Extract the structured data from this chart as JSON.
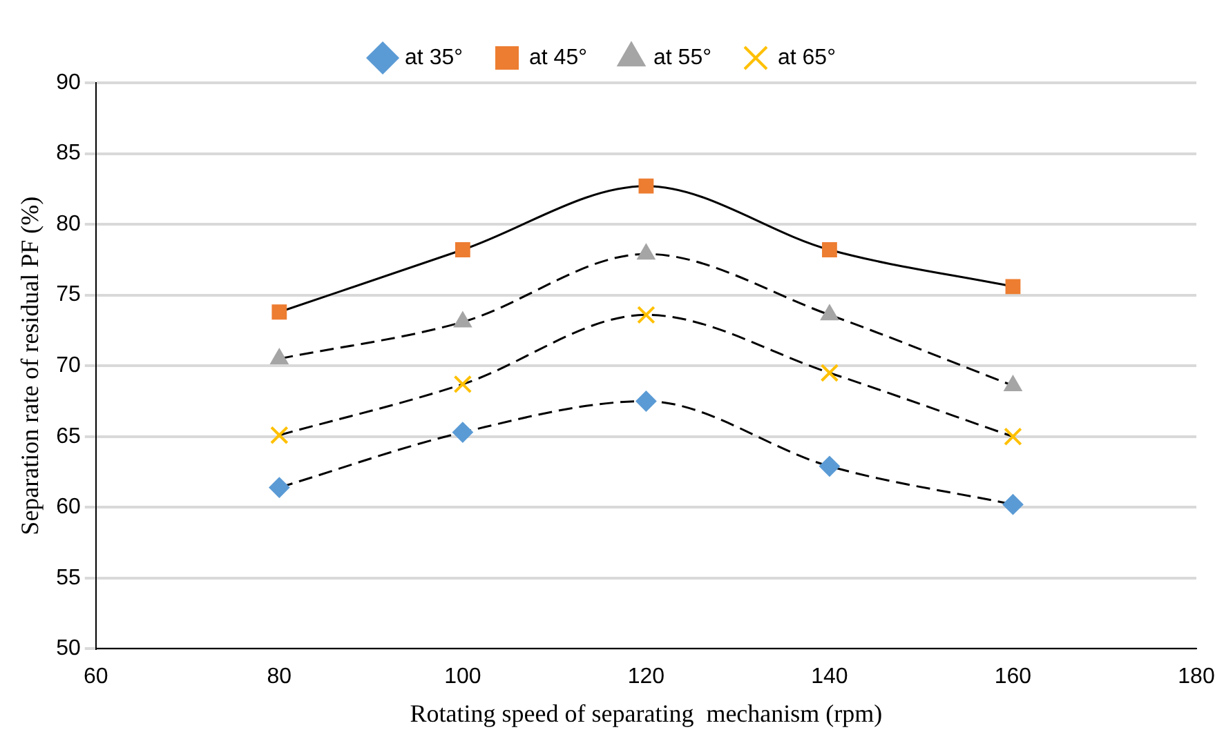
{
  "chart_data": {
    "type": "line",
    "xlabel": "Rotating speed of separating  mechanism (rpm)",
    "ylabel": "Separation rate of residual PF (%)",
    "x": [
      80,
      100,
      120,
      140,
      160
    ],
    "series": [
      {
        "name": "at 35°",
        "color": "#5b9bd5",
        "marker": "diamond",
        "line_style": "dashed",
        "values": [
          61.4,
          65.3,
          67.5,
          62.9,
          60.2
        ]
      },
      {
        "name": "at 45°",
        "color": "#ed7d31",
        "marker": "square",
        "line_style": "solid",
        "values": [
          73.8,
          78.2,
          82.7,
          78.2,
          75.6
        ]
      },
      {
        "name": "at 55°",
        "color": "#a5a5a5",
        "marker": "triangle",
        "line_style": "dashed",
        "values": [
          70.5,
          73.1,
          77.9,
          73.6,
          68.6
        ]
      },
      {
        "name": "at 65°",
        "color": "#ffc000",
        "marker": "cross",
        "line_style": "dashed",
        "values": [
          65.1,
          68.7,
          73.6,
          69.5,
          65.0
        ]
      }
    ],
    "xlim": [
      60,
      180
    ],
    "xticks": [
      60,
      80,
      100,
      120,
      140,
      160,
      180
    ],
    "ylim": [
      50,
      90
    ],
    "yticks": [
      50,
      55,
      60,
      65,
      70,
      75,
      80,
      85,
      90
    ],
    "grid": "y",
    "legend": "top"
  }
}
